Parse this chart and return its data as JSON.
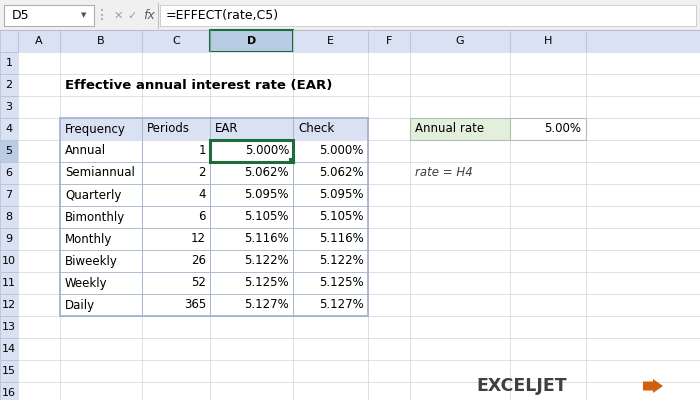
{
  "title": "Effective annual interest rate (EAR)",
  "formula_bar_cell": "D5",
  "formula_bar_formula": "=EFFECT(rate,C5)",
  "table_headers": [
    "Frequency",
    "Periods",
    "EAR",
    "Check"
  ],
  "table_data": [
    [
      "Annual",
      "1",
      "5.000%",
      "5.000%"
    ],
    [
      "Semiannual",
      "2",
      "5.062%",
      "5.062%"
    ],
    [
      "Quarterly",
      "4",
      "5.095%",
      "5.095%"
    ],
    [
      "Bimonthly",
      "6",
      "5.105%",
      "5.105%"
    ],
    [
      "Monthly",
      "12",
      "5.116%",
      "5.116%"
    ],
    [
      "Biweekly",
      "26",
      "5.122%",
      "5.122%"
    ],
    [
      "Weekly",
      "52",
      "5.125%",
      "5.125%"
    ],
    [
      "Daily",
      "365",
      "5.127%",
      "5.127%"
    ]
  ],
  "side_label": "Annual rate",
  "side_value": "5.00%",
  "note": "rate = H4",
  "header_bg": "#d9e1f2",
  "selected_cell_border": "#1e6b3c",
  "active_col_header_bg": "#b8cce4",
  "header_text_color": "#000000",
  "row_header_bg": "#e9eff7",
  "table_bg": "#ffffff",
  "side_label_bg": "#e2efda",
  "side_value_bg": "#ffffff",
  "grid_color": "#bfc9d9",
  "toolbar_bg": "#f0f0f0",
  "sheet_bg": "#ffffff",
  "exceljet_color_dark": "#404040",
  "exceljet_color_orange": "#d06010"
}
